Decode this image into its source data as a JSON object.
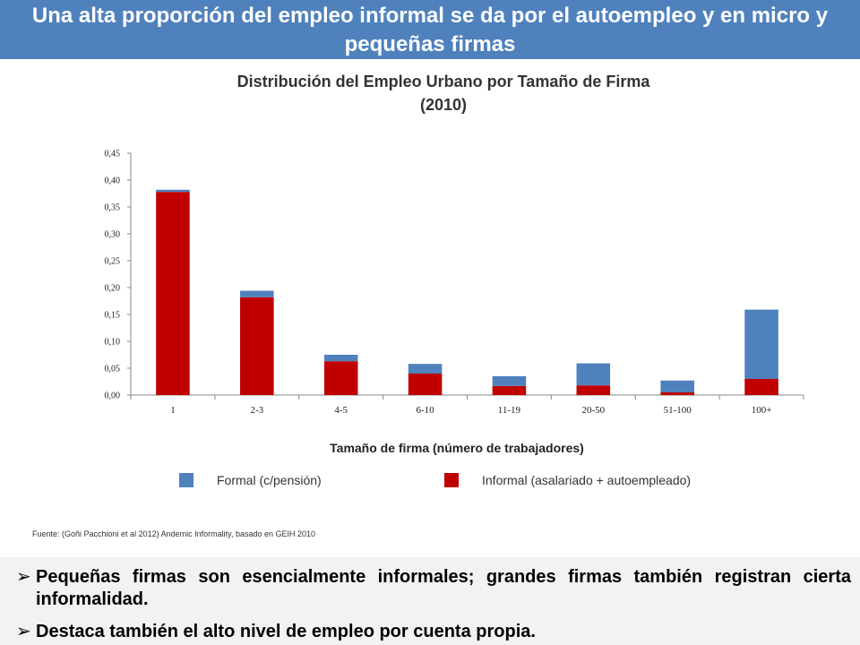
{
  "header": {
    "title": "Una alta proporción del empleo informal se da por el autoempleo y en micro y pequeñas firmas"
  },
  "chart_title": {
    "line1": "Distribución del Empleo Urbano por Tamaño de Firma",
    "line2": "(2010)"
  },
  "legend": {
    "formal": "Formal (c/pensión)",
    "informal": "Informal  (asalariado + autoempleado)"
  },
  "source": "Fuente: (Goñi Pacchioni et al 2012) Andemic Informality, basado en GEIH 2010",
  "bullets": [
    {
      "arrow": "➢",
      "text": "Pequeñas firmas son esencialmente informales; grandes firmas también registran cierta informalidad."
    },
    {
      "arrow": "➢",
      "text": "Destaca también el alto nivel de empleo por cuenta propia."
    }
  ],
  "colors": {
    "header_bg": "#4f81bd",
    "formal": "#4f81bd",
    "informal": "#c00000"
  },
  "chart_data": {
    "type": "bar",
    "stacked": true,
    "title": "Distribución del Empleo Urbano por Tamaño de Firma (2010)",
    "xlabel": "Tamaño de firma (número de trabajadores)",
    "ylabel": "",
    "categories": [
      "1",
      "2-3",
      "4-5",
      "6-10",
      "11-19",
      "20-50",
      "51-100",
      "100+"
    ],
    "series": [
      {
        "name": "Informal  (asalariado + autoempleado)",
        "color": "#c00000",
        "values": [
          0.378,
          0.182,
          0.063,
          0.04,
          0.017,
          0.018,
          0.005,
          0.03
        ]
      },
      {
        "name": "Formal (c/pensión)",
        "color": "#4f81bd",
        "values": [
          0.004,
          0.012,
          0.012,
          0.018,
          0.018,
          0.041,
          0.022,
          0.129
        ]
      }
    ],
    "ylim": [
      0,
      0.45
    ],
    "yticks": [
      "0,00",
      "0,05",
      "0,10",
      "0,15",
      "0,20",
      "0,25",
      "0,30",
      "0,35",
      "0,40",
      "0,45"
    ],
    "ytick_values": [
      0,
      0.05,
      0.1,
      0.15,
      0.2,
      0.25,
      0.3,
      0.35,
      0.4,
      0.45
    ],
    "grid": false,
    "legend_position": "bottom"
  }
}
